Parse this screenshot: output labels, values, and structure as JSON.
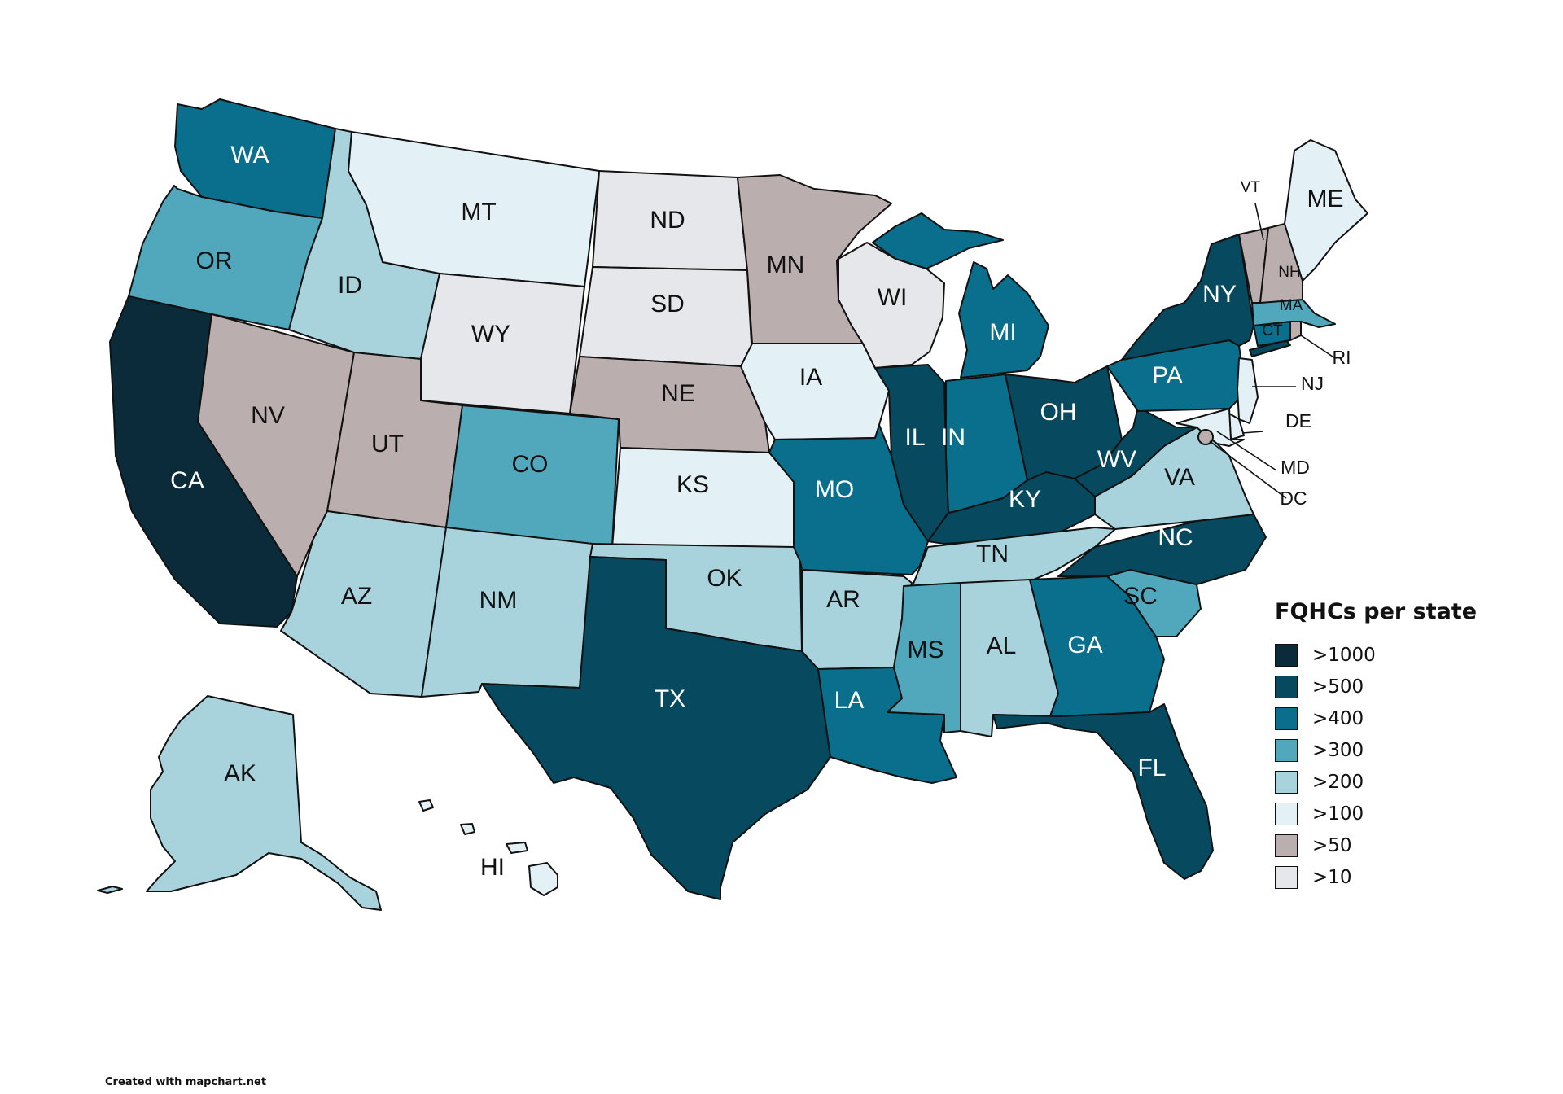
{
  "map": {
    "legend": {
      "title": "FQHCs per state",
      "items": [
        {
          "label": ">1000",
          "color": "#0b2b3a"
        },
        {
          "label": ">500",
          "color": "#07495e"
        },
        {
          "label": ">400",
          "color": "#0a6f8c"
        },
        {
          "label": ">300",
          "color": "#51a7bc"
        },
        {
          "label": ">200",
          "color": "#a9d3dc"
        },
        {
          "label": ">100",
          "color": "#e3f1f6"
        },
        {
          "label": ">50",
          "color": "#baaeae"
        },
        {
          "label": ">10",
          "color": "#e6e7eb"
        }
      ]
    },
    "states": {
      "WA": {
        "label": "WA",
        "category": ">400"
      },
      "OR": {
        "label": "OR",
        "category": ">300"
      },
      "CA": {
        "label": "CA",
        "category": ">1000"
      },
      "NV": {
        "label": "NV",
        "category": ">50"
      },
      "ID": {
        "label": "ID",
        "category": ">200"
      },
      "MT": {
        "label": "MT",
        "category": ">100"
      },
      "WY": {
        "label": "WY",
        "category": ">10"
      },
      "UT": {
        "label": "UT",
        "category": ">50"
      },
      "AZ": {
        "label": "AZ",
        "category": ">200"
      },
      "CO": {
        "label": "CO",
        "category": ">300"
      },
      "NM": {
        "label": "NM",
        "category": ">200"
      },
      "ND": {
        "label": "ND",
        "category": ">10"
      },
      "SD": {
        "label": "SD",
        "category": ">10"
      },
      "NE": {
        "label": "NE",
        "category": ">50"
      },
      "KS": {
        "label": "KS",
        "category": ">100"
      },
      "OK": {
        "label": "OK",
        "category": ">200"
      },
      "TX": {
        "label": "TX",
        "category": ">500"
      },
      "MN": {
        "label": "MN",
        "category": ">50"
      },
      "IA": {
        "label": "IA",
        "category": ">100"
      },
      "MO": {
        "label": "MO",
        "category": ">400"
      },
      "AR": {
        "label": "AR",
        "category": ">200"
      },
      "LA": {
        "label": "LA",
        "category": ">400"
      },
      "WI": {
        "label": "WI",
        "category": ">10"
      },
      "IL": {
        "label": "IL",
        "category": ">500"
      },
      "MI": {
        "label": "MI",
        "category": ">400"
      },
      "IN": {
        "label": "IN",
        "category": ">400"
      },
      "OH": {
        "label": "OH",
        "category": ">500"
      },
      "KY": {
        "label": "KY",
        "category": ">500"
      },
      "TN": {
        "label": "TN",
        "category": ">200"
      },
      "MS": {
        "label": "MS",
        "category": ">300"
      },
      "AL": {
        "label": "AL",
        "category": ">200"
      },
      "GA": {
        "label": "GA",
        "category": ">400"
      },
      "FL": {
        "label": "FL",
        "category": ">500"
      },
      "SC": {
        "label": "SC",
        "category": ">300"
      },
      "NC": {
        "label": "NC",
        "category": ">500"
      },
      "VA": {
        "label": "VA",
        "category": ">200"
      },
      "WV": {
        "label": "WV",
        "category": ">500"
      },
      "PA": {
        "label": "PA",
        "category": ">400"
      },
      "NY": {
        "label": "NY",
        "category": ">500"
      },
      "NJ": {
        "label": "NJ",
        "category": ">100"
      },
      "DE": {
        "label": "DE",
        "category": ">100"
      },
      "MD": {
        "label": "MD",
        "category": ">100"
      },
      "DC": {
        "label": "DC",
        "category": ">50"
      },
      "CT": {
        "label": "CT",
        "category": ">400"
      },
      "RI": {
        "label": "RI",
        "category": ">50"
      },
      "MA": {
        "label": "MA",
        "category": ">300"
      },
      "VT": {
        "label": "VT",
        "category": ">50"
      },
      "NH": {
        "label": "NH",
        "category": ">50"
      },
      "ME": {
        "label": "ME",
        "category": ">100"
      },
      "AK": {
        "label": "AK",
        "category": ">200"
      },
      "HI": {
        "label": "HI",
        "category": ">100"
      }
    },
    "credit": "Created with mapchart.net"
  }
}
